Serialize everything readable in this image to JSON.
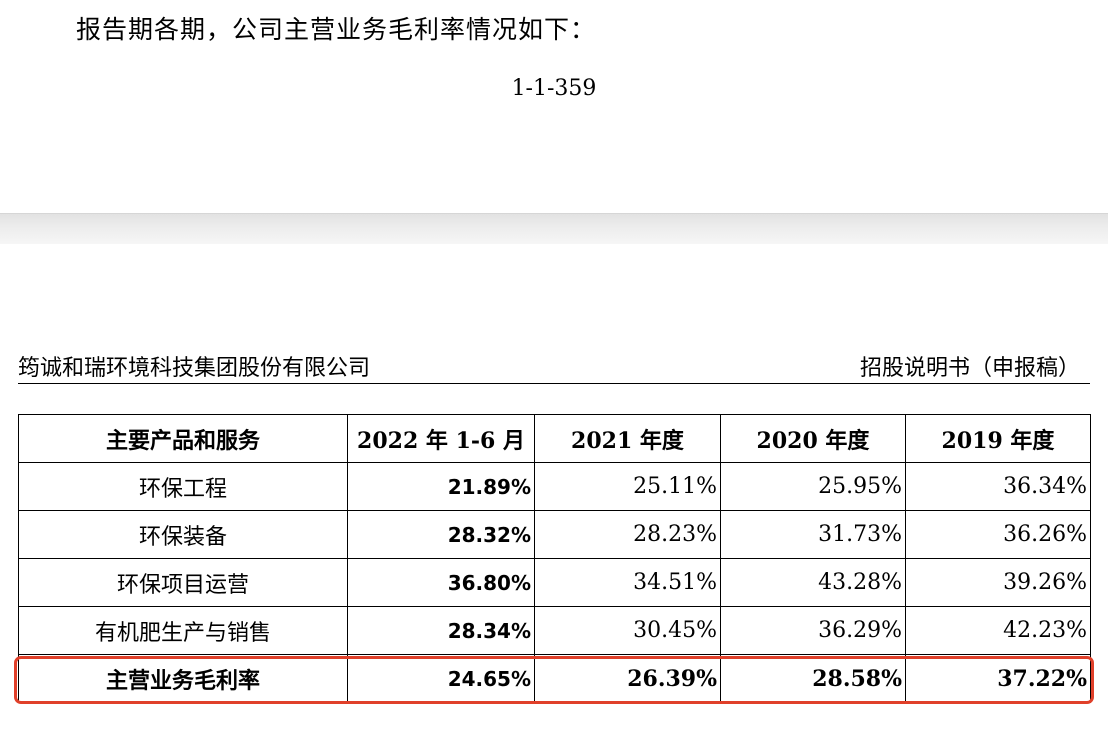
{
  "intro_text": "报告期各期，公司主营业务毛利率情况如下：",
  "page_number": "1-1-359",
  "header": {
    "company": "筠诚和瑞环境科技集团股份有限公司",
    "doc_type": "招股说明书（申报稿）"
  },
  "table": {
    "columns": [
      "主要产品和服务",
      "2022 年 1-6 月",
      "2021 年度",
      "2020 年度",
      "2019 年度"
    ],
    "rows": [
      {
        "name": "环保工程",
        "values": [
          "21.89%",
          "25.11%",
          "25.95%",
          "36.34%"
        ]
      },
      {
        "name": "环保装备",
        "values": [
          "28.32%",
          "28.23%",
          "31.73%",
          "36.26%"
        ]
      },
      {
        "name": "环保项目运营",
        "values": [
          "36.80%",
          "34.51%",
          "43.28%",
          "39.26%"
        ]
      },
      {
        "name": "有机肥生产与销售",
        "values": [
          "28.34%",
          "30.45%",
          "36.29%",
          "42.23%"
        ]
      }
    ],
    "total": {
      "name": "主营业务毛利率",
      "values": [
        "24.65%",
        "26.39%",
        "28.58%",
        "37.22%"
      ]
    }
  },
  "colors": {
    "highlight_box": "#e0402a",
    "page_gap": "#e9e9e9"
  }
}
